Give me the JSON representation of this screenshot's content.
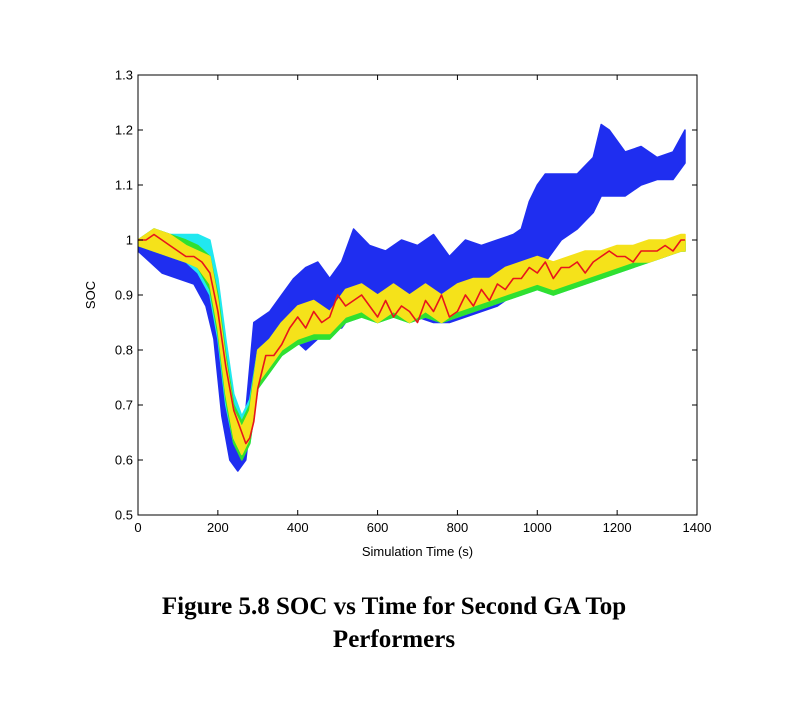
{
  "chart_data": {
    "type": "area",
    "title": "",
    "xlabel": "Simulation Time (s)",
    "ylabel": "SOC",
    "xlim": [
      0,
      1400
    ],
    "ylim": [
      0.5,
      1.3
    ],
    "xticks": [
      0,
      200,
      400,
      600,
      800,
      1000,
      1200,
      1400
    ],
    "yticks": [
      0.5,
      0.6,
      0.7,
      0.8,
      0.9,
      1,
      1.1,
      1.2,
      1.3
    ],
    "xtick_labels": [
      "0",
      "200",
      "400",
      "600",
      "800",
      "1000",
      "1200",
      "1400"
    ],
    "ytick_labels": [
      "0.5",
      "0.6",
      "0.7",
      "0.8",
      "0.9",
      "1",
      "1.1",
      "1.2",
      "1.3"
    ],
    "grid": false,
    "series": [
      {
        "name": "blue band (upper outlier)",
        "color": "#1f2ef0",
        "x": [
          0,
          30,
          60,
          100,
          140,
          170,
          190,
          210,
          230,
          250,
          270,
          290,
          310,
          330,
          360,
          390,
          420,
          450,
          480,
          510,
          540,
          580,
          620,
          660,
          700,
          740,
          780,
          820,
          860,
          900,
          940,
          960,
          980,
          1000,
          1020,
          1060,
          1100,
          1140,
          1160,
          1180,
          1220,
          1260,
          1300,
          1340,
          1370
        ],
        "upper": [
          1.0,
          1.01,
          1.0,
          1.0,
          1.0,
          0.99,
          0.94,
          0.82,
          0.7,
          0.65,
          0.69,
          0.85,
          0.86,
          0.87,
          0.9,
          0.93,
          0.95,
          0.96,
          0.93,
          0.96,
          1.02,
          0.99,
          0.98,
          1.0,
          0.99,
          1.01,
          0.97,
          1.0,
          0.99,
          1.0,
          1.01,
          1.02,
          1.07,
          1.1,
          1.12,
          1.12,
          1.12,
          1.15,
          1.21,
          1.2,
          1.16,
          1.17,
          1.15,
          1.16,
          1.2
        ],
        "lower": [
          0.98,
          0.96,
          0.94,
          0.93,
          0.92,
          0.88,
          0.82,
          0.68,
          0.6,
          0.58,
          0.6,
          0.72,
          0.76,
          0.78,
          0.8,
          0.82,
          0.8,
          0.82,
          0.84,
          0.84,
          0.87,
          0.87,
          0.86,
          0.87,
          0.86,
          0.85,
          0.85,
          0.86,
          0.87,
          0.88,
          0.9,
          0.92,
          0.94,
          0.97,
          0.96,
          1.0,
          1.02,
          1.05,
          1.08,
          1.08,
          1.08,
          1.1,
          1.11,
          1.11,
          1.14
        ]
      },
      {
        "name": "cyan band",
        "color": "#21e8f0",
        "x": [
          0,
          40,
          80,
          120,
          150,
          180,
          200,
          220,
          240,
          260,
          280,
          300,
          330,
          360,
          400,
          440,
          480,
          520,
          560,
          600,
          640,
          680,
          720,
          760,
          800,
          840,
          880,
          920,
          960,
          1000,
          1040,
          1080,
          1120,
          1160,
          1200,
          1240,
          1280,
          1320,
          1360,
          1370
        ],
        "upper": [
          1.0,
          1.02,
          1.01,
          1.01,
          1.01,
          1.0,
          0.93,
          0.82,
          0.72,
          0.68,
          0.71,
          0.8,
          0.82,
          0.85,
          0.87,
          0.88,
          0.87,
          0.9,
          0.91,
          0.9,
          0.91,
          0.9,
          0.91,
          0.9,
          0.91,
          0.92,
          0.93,
          0.94,
          0.95,
          0.96,
          0.95,
          0.96,
          0.97,
          0.97,
          0.98,
          0.98,
          0.99,
          0.99,
          1.0,
          1.0
        ],
        "lower": [
          0.99,
          0.98,
          0.97,
          0.96,
          0.94,
          0.9,
          0.82,
          0.7,
          0.63,
          0.61,
          0.63,
          0.73,
          0.76,
          0.79,
          0.81,
          0.82,
          0.82,
          0.85,
          0.86,
          0.85,
          0.86,
          0.85,
          0.86,
          0.85,
          0.86,
          0.87,
          0.88,
          0.89,
          0.9,
          0.91,
          0.9,
          0.91,
          0.92,
          0.93,
          0.94,
          0.95,
          0.96,
          0.97,
          0.98,
          0.98
        ]
      },
      {
        "name": "green band",
        "color": "#30e030",
        "x": [
          0,
          40,
          80,
          120,
          150,
          180,
          200,
          220,
          240,
          260,
          280,
          300,
          330,
          360,
          400,
          440,
          480,
          520,
          560,
          600,
          640,
          680,
          720,
          760,
          800,
          840,
          880,
          920,
          960,
          1000,
          1040,
          1080,
          1120,
          1160,
          1200,
          1240,
          1280,
          1320,
          1360,
          1370
        ],
        "upper": [
          1.0,
          1.02,
          1.01,
          1.0,
          0.99,
          0.97,
          0.9,
          0.79,
          0.7,
          0.67,
          0.7,
          0.8,
          0.82,
          0.85,
          0.87,
          0.88,
          0.87,
          0.9,
          0.91,
          0.9,
          0.91,
          0.9,
          0.91,
          0.9,
          0.91,
          0.92,
          0.93,
          0.94,
          0.95,
          0.96,
          0.95,
          0.96,
          0.97,
          0.97,
          0.98,
          0.98,
          0.99,
          0.99,
          1.0,
          1.0
        ],
        "lower": [
          0.99,
          0.98,
          0.97,
          0.96,
          0.95,
          0.91,
          0.83,
          0.71,
          0.63,
          0.6,
          0.63,
          0.73,
          0.76,
          0.79,
          0.81,
          0.82,
          0.82,
          0.85,
          0.86,
          0.85,
          0.86,
          0.85,
          0.86,
          0.85,
          0.86,
          0.87,
          0.88,
          0.89,
          0.9,
          0.91,
          0.9,
          0.91,
          0.92,
          0.93,
          0.94,
          0.95,
          0.96,
          0.97,
          0.98,
          0.98
        ]
      },
      {
        "name": "yellow band",
        "color": "#f5e21a",
        "x": [
          0,
          40,
          80,
          120,
          150,
          180,
          200,
          220,
          240,
          260,
          280,
          300,
          330,
          360,
          400,
          440,
          480,
          520,
          560,
          600,
          640,
          680,
          720,
          760,
          800,
          840,
          880,
          920,
          960,
          1000,
          1040,
          1080,
          1120,
          1160,
          1200,
          1240,
          1280,
          1320,
          1360,
          1370
        ],
        "upper": [
          1.0,
          1.02,
          1.01,
          0.99,
          0.98,
          0.97,
          0.89,
          0.78,
          0.69,
          0.66,
          0.69,
          0.8,
          0.82,
          0.85,
          0.88,
          0.89,
          0.87,
          0.91,
          0.92,
          0.9,
          0.92,
          0.9,
          0.92,
          0.9,
          0.92,
          0.93,
          0.93,
          0.95,
          0.96,
          0.97,
          0.96,
          0.97,
          0.98,
          0.98,
          0.99,
          0.99,
          1.0,
          1.0,
          1.01,
          1.01
        ],
        "lower": [
          0.99,
          0.98,
          0.97,
          0.96,
          0.95,
          0.92,
          0.84,
          0.72,
          0.64,
          0.61,
          0.64,
          0.74,
          0.77,
          0.8,
          0.82,
          0.83,
          0.83,
          0.86,
          0.87,
          0.85,
          0.87,
          0.85,
          0.87,
          0.85,
          0.87,
          0.88,
          0.89,
          0.9,
          0.91,
          0.92,
          0.91,
          0.92,
          0.93,
          0.94,
          0.95,
          0.96,
          0.96,
          0.97,
          0.98,
          0.98
        ]
      },
      {
        "name": "red line (best performer)",
        "color": "#e8151b",
        "x": [
          0,
          20,
          40,
          60,
          80,
          100,
          120,
          140,
          160,
          180,
          200,
          220,
          240,
          260,
          270,
          280,
          290,
          300,
          320,
          340,
          360,
          380,
          400,
          420,
          440,
          460,
          480,
          500,
          520,
          540,
          560,
          580,
          600,
          620,
          640,
          660,
          680,
          700,
          720,
          740,
          760,
          780,
          800,
          820,
          840,
          860,
          880,
          900,
          920,
          940,
          960,
          980,
          1000,
          1020,
          1040,
          1060,
          1080,
          1100,
          1120,
          1140,
          1160,
          1180,
          1200,
          1220,
          1240,
          1260,
          1280,
          1300,
          1320,
          1340,
          1360,
          1370
        ],
        "y": [
          1.0,
          1.0,
          1.01,
          1.0,
          0.99,
          0.98,
          0.97,
          0.97,
          0.96,
          0.94,
          0.87,
          0.77,
          0.69,
          0.65,
          0.63,
          0.64,
          0.67,
          0.73,
          0.79,
          0.79,
          0.81,
          0.84,
          0.86,
          0.84,
          0.87,
          0.85,
          0.86,
          0.9,
          0.88,
          0.89,
          0.9,
          0.88,
          0.86,
          0.89,
          0.86,
          0.88,
          0.87,
          0.85,
          0.89,
          0.87,
          0.9,
          0.86,
          0.87,
          0.9,
          0.88,
          0.91,
          0.89,
          0.92,
          0.91,
          0.93,
          0.93,
          0.95,
          0.94,
          0.96,
          0.93,
          0.95,
          0.95,
          0.96,
          0.94,
          0.96,
          0.97,
          0.98,
          0.97,
          0.97,
          0.96,
          0.98,
          0.98,
          0.98,
          0.99,
          0.98,
          1.0,
          1.0
        ]
      }
    ]
  },
  "figure": {
    "caption_line1": "Figure 5.8 SOC vs Time for Second GA Top",
    "caption_line2": "Performers"
  }
}
